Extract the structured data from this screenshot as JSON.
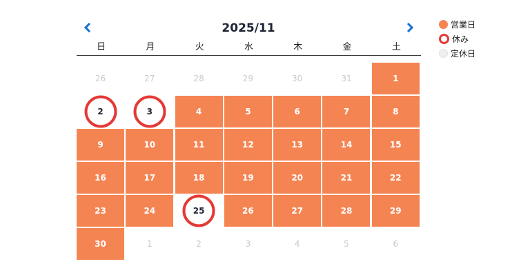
{
  "header": {
    "title": "2025/11",
    "prev_label": "‹",
    "next_label": "›"
  },
  "weekdays": [
    "日",
    "月",
    "火",
    "水",
    "木",
    "金",
    "土"
  ],
  "colors": {
    "open": "#f58453",
    "closed_ring": "#e53935",
    "nav": "#1a6fd6"
  },
  "legend": [
    {
      "label": "営業日",
      "type": "open"
    },
    {
      "label": "休み",
      "type": "closed"
    },
    {
      "label": "定休日",
      "type": "regular"
    }
  ],
  "days": [
    {
      "label": "26",
      "type": "other"
    },
    {
      "label": "27",
      "type": "other"
    },
    {
      "label": "28",
      "type": "other"
    },
    {
      "label": "29",
      "type": "other"
    },
    {
      "label": "30",
      "type": "other"
    },
    {
      "label": "31",
      "type": "other"
    },
    {
      "label": "1",
      "type": "open"
    },
    {
      "label": "2",
      "type": "closed"
    },
    {
      "label": "3",
      "type": "closed"
    },
    {
      "label": "4",
      "type": "open"
    },
    {
      "label": "5",
      "type": "open"
    },
    {
      "label": "6",
      "type": "open"
    },
    {
      "label": "7",
      "type": "open"
    },
    {
      "label": "8",
      "type": "open"
    },
    {
      "label": "9",
      "type": "open"
    },
    {
      "label": "10",
      "type": "open"
    },
    {
      "label": "11",
      "type": "open"
    },
    {
      "label": "12",
      "type": "open"
    },
    {
      "label": "13",
      "type": "open"
    },
    {
      "label": "14",
      "type": "open"
    },
    {
      "label": "15",
      "type": "open"
    },
    {
      "label": "16",
      "type": "open"
    },
    {
      "label": "17",
      "type": "open"
    },
    {
      "label": "18",
      "type": "open"
    },
    {
      "label": "19",
      "type": "open"
    },
    {
      "label": "20",
      "type": "open"
    },
    {
      "label": "21",
      "type": "open"
    },
    {
      "label": "22",
      "type": "open"
    },
    {
      "label": "23",
      "type": "open"
    },
    {
      "label": "24",
      "type": "open"
    },
    {
      "label": "25",
      "type": "closed"
    },
    {
      "label": "26",
      "type": "open"
    },
    {
      "label": "27",
      "type": "open"
    },
    {
      "label": "28",
      "type": "open"
    },
    {
      "label": "29",
      "type": "open"
    },
    {
      "label": "30",
      "type": "open"
    },
    {
      "label": "1",
      "type": "other"
    },
    {
      "label": "2",
      "type": "other"
    },
    {
      "label": "3",
      "type": "other"
    },
    {
      "label": "4",
      "type": "other"
    },
    {
      "label": "5",
      "type": "other"
    },
    {
      "label": "6",
      "type": "other"
    }
  ]
}
